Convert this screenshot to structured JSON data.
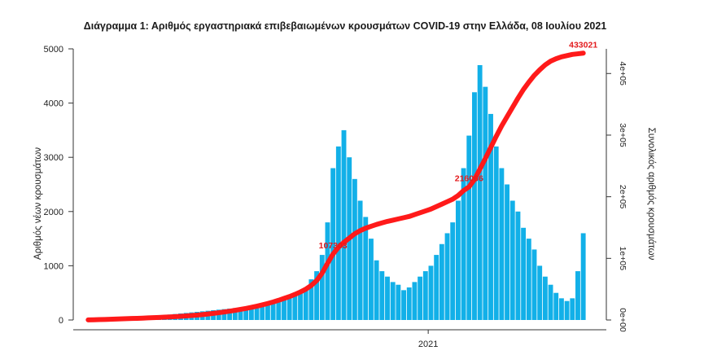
{
  "chart_data": {
    "type": "bar+line",
    "title": "Διάγραμμα 1: Αριθμός εργαστηριακά επιβεβαιωμένων κρουσμάτων COVID-19 στην Ελλάδα, 08 Ιουλίου 2021",
    "xlabel": "2021",
    "ylabel": "Αριθμός νέων κρουσμάτων",
    "ylabel_right": "Συνολικός αριθμός κρουσμάτων",
    "ylim": [
      0,
      5000
    ],
    "ylim_right": [
      0,
      440000
    ],
    "y_ticks": [
      "0",
      "1000",
      "2000",
      "3000",
      "4000",
      "5000"
    ],
    "y_ticks_right": [
      "0e+00",
      "1e+05",
      "2e+05",
      "3e+05",
      "4e+05"
    ],
    "y_ticks_right_values": [
      0,
      100000,
      200000,
      300000,
      400000
    ],
    "x_tick_label": "2021",
    "x_tick_index": 63,
    "bar_color": "#12b0e8",
    "line_color": "#ff1a1a",
    "daily_new_cases_weekly": [
      5,
      8,
      12,
      20,
      25,
      30,
      35,
      40,
      45,
      50,
      55,
      60,
      70,
      80,
      90,
      100,
      110,
      120,
      130,
      140,
      150,
      160,
      170,
      180,
      190,
      200,
      210,
      220,
      230,
      240,
      250,
      270,
      300,
      330,
      360,
      380,
      400,
      420,
      450,
      500,
      600,
      750,
      900,
      1200,
      1800,
      2800,
      3200,
      3500,
      3000,
      2600,
      2200,
      1900,
      1500,
      1100,
      900,
      800,
      700,
      650,
      550,
      600,
      700,
      800,
      900,
      1000,
      1200,
      1400,
      1600,
      1800,
      2200,
      2800,
      3400,
      4200,
      4700,
      4300,
      3800,
      3200,
      2800,
      2500,
      2200,
      2000,
      1700,
      1500,
      1300,
      1000,
      800,
      650,
      500,
      400,
      350,
      400,
      900,
      1600
    ],
    "cumulative_cases_weekly": [
      244,
      400,
      600,
      900,
      1200,
      1500,
      1800,
      2100,
      2400,
      2700,
      3000,
      3400,
      3800,
      4200,
      4600,
      5000,
      5500,
      6000,
      6600,
      7300,
      8000,
      8800,
      9700,
      10700,
      11800,
      13000,
      14300,
      15700,
      17200,
      18800,
      20500,
      22400,
      24500,
      26800,
      29300,
      32000,
      35000,
      38000,
      41500,
      45500,
      50000,
      56000,
      64000,
      76000,
      92000,
      107000,
      118000,
      126000,
      133000,
      140000,
      145000,
      149000,
      152000,
      155000,
      157500,
      160000,
      162000,
      164000,
      166000,
      168000,
      171000,
      174000,
      177000,
      180000,
      184000,
      188000,
      192000,
      196000,
      202000,
      210000,
      216000,
      228000,
      245000,
      262000,
      280000,
      298000,
      315000,
      330000,
      345000,
      360000,
      374000,
      386000,
      397000,
      406000,
      414000,
      420000,
      424000,
      427000,
      429000,
      431000,
      432000,
      433021
    ],
    "annotations": [
      {
        "label": "107303",
        "index": 45
      },
      {
        "label": "216066",
        "index": 70
      },
      {
        "label": "433021",
        "index": 91
      }
    ]
  }
}
